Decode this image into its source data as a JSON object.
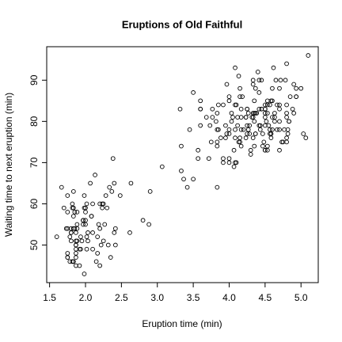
{
  "chart_data": {
    "type": "scatter",
    "title": "Eruptions of Old Faithful",
    "x_label": "Eruption time (min)",
    "y_label": "Waiting time to next eruption (min)",
    "color": "#000000",
    "xlim": [
      1.46,
      5.24
    ],
    "ylim": [
      40.88,
      98.12
    ],
    "xticks": [
      1.5,
      {
        "value": 2,
        "label": "2.0"
      },
      2.5,
      {
        "value": 3,
        "label": "3.0"
      },
      3.5,
      {
        "value": 4,
        "label": "4.0"
      },
      4.5,
      {
        "value": 5,
        "label": "5.0"
      }
    ],
    "yticks": [
      50,
      60,
      70,
      80,
      90
    ],
    "x": [
      3.6,
      1.8,
      3.333,
      2.283,
      4.533,
      2.883,
      4.7,
      3.6,
      1.95,
      4.35,
      1.833,
      3.917,
      4.2,
      1.75,
      4.7,
      2.167,
      1.75,
      4.8,
      1.6,
      4.25,
      1.8,
      1.75,
      3.45,
      3.067,
      4.533,
      3.6,
      1.967,
      4.083,
      3.85,
      4.433,
      4.3,
      4.467,
      3.367,
      4.033,
      3.833,
      2.017,
      1.867,
      4.833,
      1.833,
      4.783,
      4.35,
      1.883,
      4.567,
      1.75,
      4.533,
      3.317,
      3.833,
      2.1,
      4.633,
      2,
      4.8,
      4.716,
      1.833,
      4.833,
      1.733,
      4.883,
      3.717,
      1.667,
      4.567,
      4.317,
      2.233,
      4.5,
      1.75,
      4.8,
      1.817,
      4.4,
      4.167,
      4.7,
      2.067,
      4.7,
      4.033,
      1.967,
      4.5,
      4,
      1.983,
      5.067,
      2.017,
      4.567,
      3.883,
      3.6,
      4.133,
      4.333,
      4.1,
      2.633,
      4.067,
      4.933,
      3.95,
      4.517,
      2.167,
      4,
      2.2,
      4.333,
      1.867,
      4.817,
      1.833,
      4.3,
      4.667,
      3.75,
      1.867,
      4.9,
      2.483,
      4.367,
      2.1,
      4.5,
      4.05,
      1.867,
      4.7,
      1.783,
      4.85,
      3.683,
      4.733,
      2.3,
      4.9,
      4.417,
      1.7,
      4.633,
      2.317,
      4.6,
      1.817,
      4.417,
      2.617,
      4.067,
      4.25,
      1.967,
      4.6,
      3.767,
      1.917,
      4.5,
      2.267,
      4.65,
      1.867,
      4.167,
      2.8,
      4.333,
      1.833,
      4.383,
      1.883,
      4.933,
      2.033,
      3.733,
      4.233,
      2.233,
      4.533,
      4.817,
      4.333,
      1.983,
      4.633,
      2.017,
      5.1,
      1.8,
      5.033,
      4,
      2.4,
      4.6,
      3.567,
      4,
      4.5,
      4.083,
      1.8,
      3.967,
      2.2,
      4.15,
      2,
      3.833,
      3.5,
      4.583,
      2.367,
      5,
      1.933,
      4.617,
      1.917,
      2.083,
      4.583,
      3.333,
      4.167,
      4.333,
      4.5,
      2.417,
      4,
      4.167,
      1.883,
      4.583,
      4.25,
      3.767,
      2.033,
      4.433,
      4.083,
      1.833,
      4.417,
      2.183,
      4.8,
      1.833,
      4.8,
      4.1,
      3.966,
      4.233,
      3.5,
      4.366,
      2.25,
      4.667,
      2.1,
      4.35,
      4.133,
      1.867,
      4.6,
      1.783,
      4.367,
      3.85,
      1.933,
      4.5,
      2.383,
      4.7,
      1.867,
      3.833,
      3.417,
      4.233,
      2.4,
      4.8,
      2,
      4.15,
      1.867,
      4.267,
      1.75,
      4.483,
      4,
      4.117,
      4.083,
      4.267,
      3.917,
      4.55,
      4.083,
      2.417,
      4.183,
      2.217,
      4.45,
      1.883,
      1.85,
      4.283,
      3.95,
      2.333,
      4.15,
      2.35,
      4.933,
      2.9,
      4.583,
      3.833,
      2.083,
      4.367,
      2.133,
      4.35,
      2.2,
      4.45,
      3.567,
      4.5,
      4.15,
      3.817,
      3.917,
      4.45,
      2,
      4.283,
      4.767,
      4.533,
      1.85,
      4.25,
      1.983,
      2.25,
      4.75,
      4.117,
      2.15,
      4.417,
      1.817,
      4.467
    ],
    "values": [
      79,
      54,
      74,
      62,
      85,
      55,
      88,
      85,
      51,
      85,
      54,
      84,
      78,
      47,
      83,
      52,
      62,
      84,
      52,
      79,
      51,
      47,
      78,
      69,
      74,
      83,
      55,
      76,
      78,
      79,
      73,
      77,
      66,
      80,
      74,
      52,
      48,
      80,
      59,
      90,
      80,
      58,
      84,
      58,
      73,
      83,
      64,
      53,
      82,
      59,
      75,
      90,
      54,
      80,
      54,
      83,
      71,
      64,
      77,
      81,
      59,
      84,
      48,
      82,
      60,
      92,
      78,
      78,
      65,
      73,
      82,
      56,
      79,
      71,
      62,
      76,
      60,
      78,
      76,
      83,
      75,
      82,
      70,
      65,
      73,
      88,
      76,
      80,
      48,
      86,
      60,
      90,
      50,
      78,
      63,
      72,
      84,
      75,
      51,
      82,
      62,
      88,
      49,
      83,
      81,
      47,
      84,
      52,
      86,
      81,
      75,
      59,
      89,
      79,
      59,
      81,
      50,
      85,
      59,
      87,
      53,
      69,
      77,
      56,
      88,
      81,
      45,
      82,
      55,
      90,
      45,
      83,
      56,
      89,
      46,
      82,
      51,
      86,
      53,
      79,
      81,
      60,
      82,
      77,
      76,
      59,
      80,
      49,
      96,
      53,
      77,
      77,
      65,
      81,
      71,
      70,
      81,
      93,
      53,
      89,
      45,
      86,
      58,
      78,
      66,
      76,
      63,
      88,
      52,
      93,
      49,
      57,
      77,
      68,
      81,
      81,
      73,
      50,
      85,
      74,
      55,
      77,
      83,
      83,
      51,
      78,
      84,
      46,
      83,
      55,
      81,
      57,
      76,
      84,
      77,
      81,
      87,
      77,
      51,
      78,
      60,
      82,
      91,
      53,
      78,
      46,
      77,
      84,
      49,
      83,
      71,
      80,
      49,
      75,
      64,
      76,
      53,
      94,
      55,
      76,
      50,
      82,
      54,
      75,
      78,
      79,
      78,
      78,
      70,
      79,
      70,
      54,
      86,
      50,
      90,
      54,
      54,
      77,
      79,
      64,
      75,
      47,
      86,
      63,
      85,
      82,
      57,
      82,
      67,
      74,
      54,
      83,
      73,
      73,
      88,
      80,
      71,
      83,
      56,
      79,
      78,
      84,
      58,
      83,
      43,
      60,
      75,
      81,
      46,
      90,
      46,
      74
    ]
  }
}
